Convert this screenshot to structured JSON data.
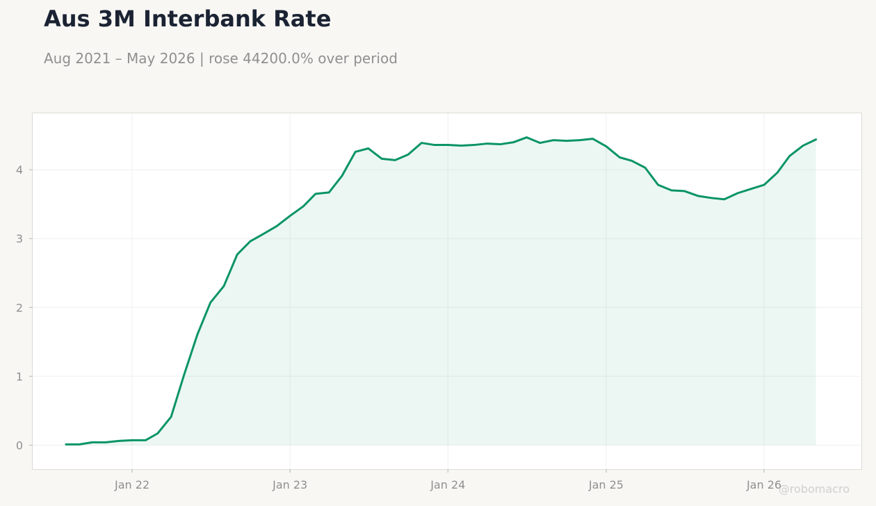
{
  "header": {
    "title": "Aus 3M Interbank Rate",
    "subtitle": "Aug 2021 – May 2026 | rose 44200.0% over period"
  },
  "watermark": "@robomacro",
  "colors": {
    "line": "#0a9467",
    "fill": "#0a9467",
    "background": "#f8f7f4",
    "plot_background": "#ffffff",
    "title": "#1b2333",
    "muted_text": "#8f8f8f",
    "grid": "#efefef"
  },
  "chart_data": {
    "type": "area",
    "title": "Aus 3M Interbank Rate",
    "subtitle": "Aug 2021 – May 2026 | rose 44200.0% over period",
    "xlabel": "",
    "ylabel": "",
    "x_ticks": [
      "Jan 22",
      "Jan 23",
      "Jan 24",
      "Jan 25",
      "Jan 26"
    ],
    "y_ticks": [
      0,
      1,
      2,
      3,
      4
    ],
    "ylim": [
      -0.35,
      4.82
    ],
    "xlim": [
      "2021-05-16",
      "2026-08-14"
    ],
    "grid": true,
    "series": [
      {
        "x": [
          "2021-08-01",
          "2021-09-01",
          "2021-10-01",
          "2021-11-01",
          "2021-12-01",
          "2022-01-01",
          "2022-02-01",
          "2022-03-01",
          "2022-04-01",
          "2022-05-01",
          "2022-06-01",
          "2022-07-01",
          "2022-08-01",
          "2022-09-01",
          "2022-10-01",
          "2022-11-01",
          "2022-12-01",
          "2023-01-01",
          "2023-02-01",
          "2023-03-01",
          "2023-04-01",
          "2023-05-01",
          "2023-06-01",
          "2023-07-01",
          "2023-08-01",
          "2023-09-01",
          "2023-10-01",
          "2023-11-01",
          "2023-12-01",
          "2024-01-01",
          "2024-02-01",
          "2024-03-01",
          "2024-04-01",
          "2024-05-01",
          "2024-06-01",
          "2024-07-01",
          "2024-08-01",
          "2024-09-01",
          "2024-10-01",
          "2024-11-01",
          "2024-12-01",
          "2025-01-01",
          "2025-02-01",
          "2025-03-01",
          "2025-04-01",
          "2025-05-01",
          "2025-06-01",
          "2025-07-01",
          "2025-08-01",
          "2025-09-01",
          "2025-10-01",
          "2025-11-01",
          "2025-12-01",
          "2026-01-01",
          "2026-02-01",
          "2026-03-01",
          "2026-04-01",
          "2026-05-01"
        ],
        "values": [
          0.01,
          0.01,
          0.04,
          0.04,
          0.06,
          0.07,
          0.07,
          0.17,
          0.41,
          1.02,
          1.61,
          2.07,
          2.31,
          2.77,
          2.96,
          3.07,
          3.18,
          3.33,
          3.47,
          3.65,
          3.67,
          3.91,
          4.26,
          4.31,
          4.16,
          4.14,
          4.22,
          4.39,
          4.36,
          4.36,
          4.35,
          4.36,
          4.38,
          4.37,
          4.4,
          4.47,
          4.39,
          4.43,
          4.42,
          4.43,
          4.45,
          4.34,
          4.18,
          4.13,
          4.03,
          3.78,
          3.7,
          3.69,
          3.62,
          3.59,
          3.57,
          3.66,
          3.72,
          3.78,
          3.96,
          4.2,
          4.35,
          4.44
        ]
      }
    ]
  }
}
